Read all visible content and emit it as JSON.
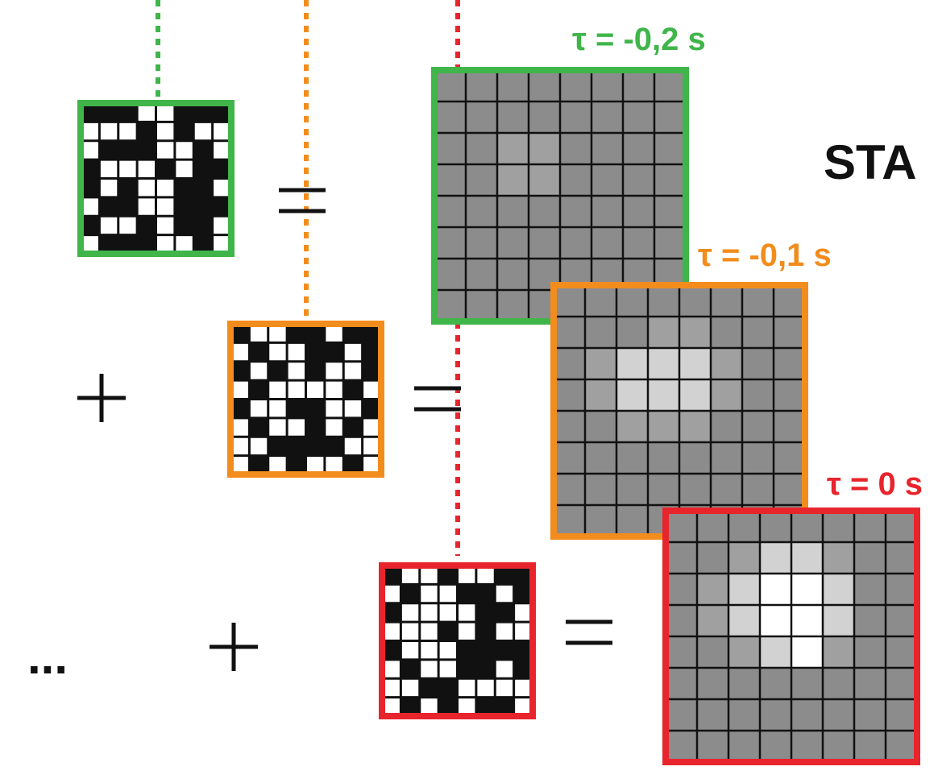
{
  "labels": {
    "sta": "STA",
    "ellipsis": "...",
    "plus": "+",
    "equals": "="
  },
  "colors": {
    "green": "#3fb54a",
    "orange": "#f28c1c",
    "red": "#e8242c",
    "black": "#111111",
    "white": "#ffffff"
  },
  "stimulus_frames": [
    {
      "name": "green",
      "pattern": [
        "00011000",
        "11101011",
        "10001101",
        "01110100",
        "01011001",
        "10011000",
        "01101001",
        "10001101"
      ]
    },
    {
      "name": "orange",
      "pattern": [
        "01100100",
        "10110010",
        "01010110",
        "10111101",
        "01100110",
        "10110101",
        "11000011",
        "10101101"
      ]
    },
    {
      "name": "red",
      "pattern": [
        "01101100",
        "10110010",
        "01111001",
        "11101011",
        "01110000",
        "10110010",
        "11001111",
        "10101001"
      ]
    }
  ],
  "sta_frames": [
    {
      "name": "green",
      "tau_label": "τ = -0,2 s",
      "intensity": [
        "00000000",
        "00000000",
        "00110000",
        "00110000",
        "00000000",
        "00000000",
        "00000000",
        "00000000"
      ]
    },
    {
      "name": "orange",
      "tau_label": "τ = -0,1 s",
      "intensity": [
        "00000000",
        "00011000",
        "01222100",
        "01222100",
        "00111000",
        "00000000",
        "00000000",
        "00000000"
      ]
    },
    {
      "name": "red",
      "tau_label": "τ = 0 s",
      "intensity": [
        "00000000",
        "00122100",
        "01233200",
        "01233200",
        "00123100",
        "00000000",
        "00000000",
        "00000000"
      ]
    }
  ],
  "sta_shades": [
    "#8c8c8c",
    "#a0a0a0",
    "#d2d2d2",
    "#ffffff"
  ]
}
